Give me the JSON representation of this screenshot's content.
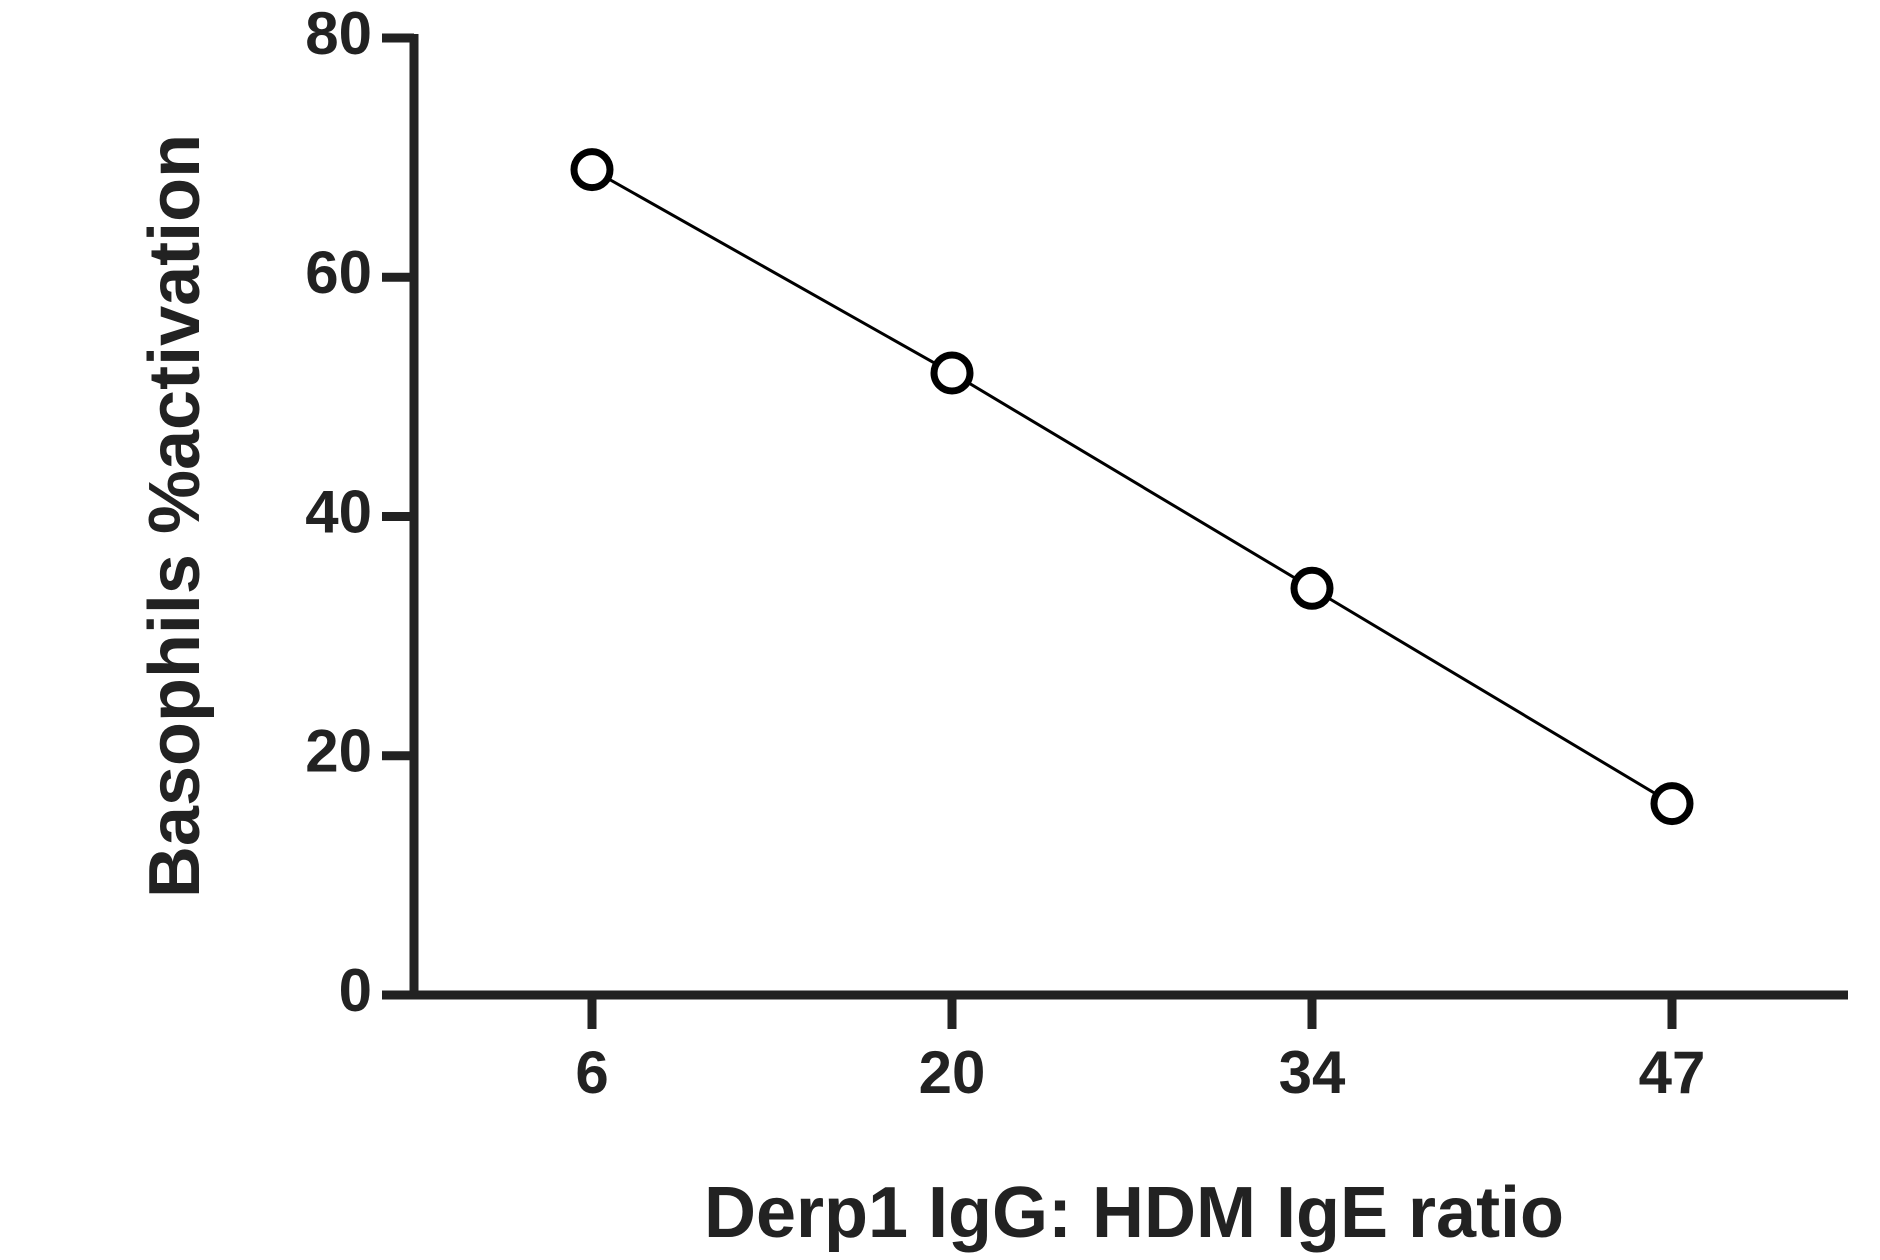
{
  "chart_data": {
    "type": "line",
    "x_label": "Derp1 IgG: HDM IgE ratio",
    "y_label": "Basophils %activation",
    "categories": [
      "6",
      "20",
      "34",
      "47"
    ],
    "values": [
      69,
      52,
      34,
      16
    ],
    "color": "#000000",
    "ylim": [
      0,
      80
    ],
    "yticks": [
      0,
      20,
      40,
      60,
      80
    ]
  }
}
